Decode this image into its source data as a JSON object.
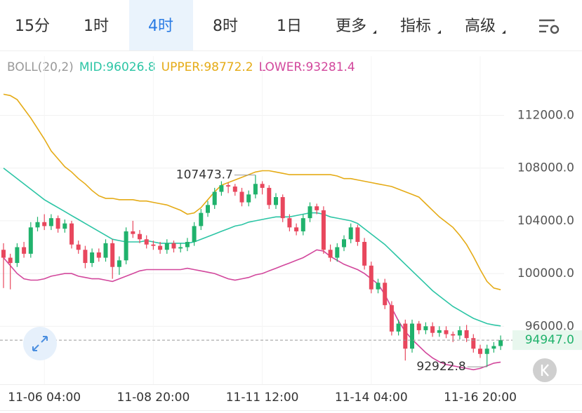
{
  "tabs": [
    "15分",
    "1时",
    "4时",
    "8时",
    "1日",
    "更多",
    "指标",
    "高级"
  ],
  "active_tab": 2,
  "chart_data": {
    "type": "candlestick",
    "indicator": "BOLL(20,2)",
    "up_color": "#20b26c",
    "down_color": "#e8475d",
    "categories": [
      null,
      null,
      null,
      null,
      null,
      null,
      "11-06 04:00",
      null,
      null,
      null,
      null,
      null,
      null,
      null,
      null,
      null,
      null,
      null,
      null,
      null,
      null,
      null,
      "11-08 20:00",
      null,
      null,
      null,
      null,
      null,
      null,
      null,
      null,
      null,
      null,
      null,
      null,
      null,
      null,
      null,
      "11-11 12:00",
      null,
      null,
      null,
      null,
      null,
      null,
      null,
      null,
      null,
      null,
      null,
      null,
      null,
      null,
      null,
      "11-14 04:00",
      null,
      null,
      null,
      null,
      null,
      null,
      null,
      null,
      null,
      null,
      null,
      null,
      null,
      null,
      null,
      "11-16 20:00",
      null,
      null,
      null
    ],
    "ohlc": [
      [
        101800,
        102300,
        98900,
        101200
      ],
      [
        101200,
        101500,
        98800,
        100800
      ],
      [
        100800,
        102300,
        100500,
        102000
      ],
      [
        102000,
        102400,
        101200,
        101500
      ],
      [
        101500,
        103900,
        101200,
        103500
      ],
      [
        103500,
        104300,
        103200,
        103900
      ],
      [
        103900,
        104500,
        103300,
        103600
      ],
      [
        103600,
        104500,
        103300,
        104200
      ],
      [
        104200,
        104400,
        103100,
        103400
      ],
      [
        103400,
        104100,
        103100,
        103800
      ],
      [
        103800,
        104000,
        101900,
        102200
      ],
      [
        102200,
        102500,
        101500,
        101800
      ],
      [
        101800,
        102100,
        100400,
        100800
      ],
      [
        100800,
        101900,
        100500,
        101600
      ],
      [
        101600,
        101900,
        100900,
        101200
      ],
      [
        101200,
        102600,
        100900,
        102300
      ],
      [
        102300,
        102600,
        99600,
        100500
      ],
      [
        100500,
        101300,
        99900,
        101000
      ],
      [
        101000,
        103500,
        100700,
        103200
      ],
      [
        103200,
        104000,
        102700,
        103000
      ],
      [
        103000,
        103300,
        102300,
        102600
      ],
      [
        102600,
        102900,
        101900,
        102200
      ],
      [
        102200,
        102500,
        101800,
        102100
      ],
      [
        102100,
        102400,
        101500,
        101800
      ],
      [
        101800,
        102600,
        101500,
        102300
      ],
      [
        102300,
        102500,
        101600,
        101900
      ],
      [
        101900,
        102300,
        101600,
        102000
      ],
      [
        102000,
        102700,
        101700,
        102400
      ],
      [
        102400,
        103900,
        102100,
        103600
      ],
      [
        103600,
        104900,
        103300,
        104600
      ],
      [
        104600,
        105500,
        104300,
        105200
      ],
      [
        105200,
        106500,
        104900,
        106200
      ],
      [
        106200,
        107000,
        105900,
        106700
      ],
      [
        106700,
        106900,
        106100,
        106600
      ],
      [
        106600,
        106800,
        105900,
        106200
      ],
      [
        106200,
        106500,
        105100,
        105400
      ],
      [
        105400,
        106300,
        105100,
        106000
      ],
      [
        106000,
        107473.7,
        105700,
        106800
      ],
      [
        106800,
        107000,
        106000,
        106500
      ],
      [
        106500,
        106700,
        104900,
        105200
      ],
      [
        105200,
        106100,
        104900,
        105800
      ],
      [
        105800,
        106000,
        103900,
        104200
      ],
      [
        104200,
        104500,
        103200,
        103500
      ],
      [
        103500,
        103800,
        102900,
        103200
      ],
      [
        103200,
        104500,
        102900,
        104200
      ],
      [
        104200,
        105400,
        103900,
        105100
      ],
      [
        105100,
        105300,
        104500,
        104800
      ],
      [
        104800,
        105100,
        101500,
        101800
      ],
      [
        101800,
        102200,
        100900,
        101200
      ],
      [
        101200,
        102300,
        100900,
        102000
      ],
      [
        102000,
        102900,
        101700,
        102600
      ],
      [
        102600,
        103800,
        102300,
        103500
      ],
      [
        103500,
        103700,
        102100,
        102400
      ],
      [
        102400,
        102700,
        100300,
        100600
      ],
      [
        100600,
        100900,
        98500,
        98800
      ],
      [
        98800,
        99600,
        98500,
        99300
      ],
      [
        99300,
        99600,
        97300,
        97600
      ],
      [
        97600,
        97900,
        95300,
        95600
      ],
      [
        95600,
        96500,
        95300,
        96200
      ],
      [
        96200,
        96500,
        93400,
        94300
      ],
      [
        94300,
        96500,
        94000,
        96200
      ],
      [
        96200,
        96400,
        95400,
        95700
      ],
      [
        95700,
        96300,
        95400,
        96000
      ],
      [
        96000,
        96300,
        95200,
        95500
      ],
      [
        95500,
        96000,
        95200,
        95700
      ],
      [
        95700,
        96000,
        95100,
        95400
      ],
      [
        95400,
        95600,
        94800,
        95300
      ],
      [
        95300,
        96000,
        95000,
        95700
      ],
      [
        95700,
        96100,
        94800,
        95100
      ],
      [
        95100,
        95400,
        94000,
        94300
      ],
      [
        94300,
        94600,
        93600,
        93900
      ],
      [
        93900,
        94600,
        92922.8,
        94300
      ],
      [
        94300,
        94800,
        94000,
        94500
      ],
      [
        94500,
        95300,
        94200,
        94947
      ]
    ],
    "series": [
      {
        "name": "MID:96026.8",
        "color": "#2cc5a5",
        "values": [
          108000,
          107600,
          107200,
          106800,
          106400,
          106000,
          105600,
          105300,
          105000,
          104700,
          104400,
          104100,
          103800,
          103500,
          103200,
          102900,
          102600,
          102500,
          102400,
          102400,
          102400,
          102500,
          102400,
          102300,
          102300,
          102300,
          102300,
          102300,
          102400,
          102600,
          102800,
          103000,
          103200,
          103400,
          103600,
          103700,
          103900,
          104000,
          104100,
          104200,
          104300,
          104300,
          104300,
          104400,
          104500,
          104600,
          104600,
          104500,
          104300,
          104200,
          104100,
          104000,
          103800,
          103400,
          103000,
          102600,
          102200,
          101700,
          101200,
          100700,
          100200,
          99700,
          99200,
          98700,
          98300,
          97900,
          97500,
          97200,
          96900,
          96600,
          96400,
          96200,
          96100,
          96026.8
        ]
      },
      {
        "name": "UPPER:98772.2",
        "color": "#e5ab16",
        "values": [
          113600,
          113500,
          113200,
          112500,
          111800,
          111000,
          110200,
          109300,
          108700,
          108100,
          107700,
          107200,
          106800,
          106300,
          105900,
          105700,
          105700,
          105600,
          105600,
          105600,
          105500,
          105500,
          105400,
          105300,
          105200,
          105000,
          104800,
          104500,
          104600,
          105000,
          105600,
          106200,
          106700,
          106900,
          107100,
          107300,
          107500,
          107700,
          107800,
          107800,
          107700,
          107600,
          107500,
          107500,
          107500,
          107500,
          107500,
          107500,
          107500,
          107400,
          107200,
          107200,
          107100,
          107000,
          106900,
          106800,
          106700,
          106600,
          106400,
          106200,
          106000,
          105800,
          105300,
          104800,
          104300,
          103900,
          103500,
          102900,
          102200,
          101300,
          100300,
          99400,
          98900,
          98772.2
        ]
      },
      {
        "name": "LOWER:93281.4",
        "color": "#d2479c",
        "values": [
          101200,
          100600,
          100000,
          99600,
          99500,
          99500,
          99600,
          99800,
          99900,
          100000,
          100000,
          99800,
          99700,
          99600,
          99600,
          99500,
          99400,
          99600,
          99800,
          100000,
          100200,
          100300,
          100300,
          100300,
          100300,
          100300,
          100300,
          100400,
          100300,
          100200,
          100100,
          100000,
          99800,
          99600,
          99500,
          99600,
          99700,
          99900,
          100000,
          100200,
          100400,
          100600,
          100800,
          101000,
          101200,
          101500,
          101800,
          101700,
          101300,
          101000,
          100700,
          100500,
          100300,
          100000,
          99600,
          99200,
          98400,
          97400,
          96400,
          95600,
          95000,
          94500,
          94000,
          93600,
          93300,
          93100,
          93000,
          92900,
          92800,
          92700,
          92800,
          93000,
          93200,
          93281.4
        ]
      }
    ],
    "last_price": {
      "value": 94947,
      "label": "94947.0"
    },
    "ylim": [
      91600,
      114900
    ],
    "yticks": [
      {
        "value": 96000,
        "label": "96000.0"
      },
      {
        "value": 100000,
        "label": "100000.0"
      },
      {
        "value": 104000,
        "label": "104000.0"
      },
      {
        "value": 108000,
        "label": "108000.0"
      },
      {
        "value": 112000,
        "label": "112000.0"
      }
    ],
    "grid": true
  }
}
